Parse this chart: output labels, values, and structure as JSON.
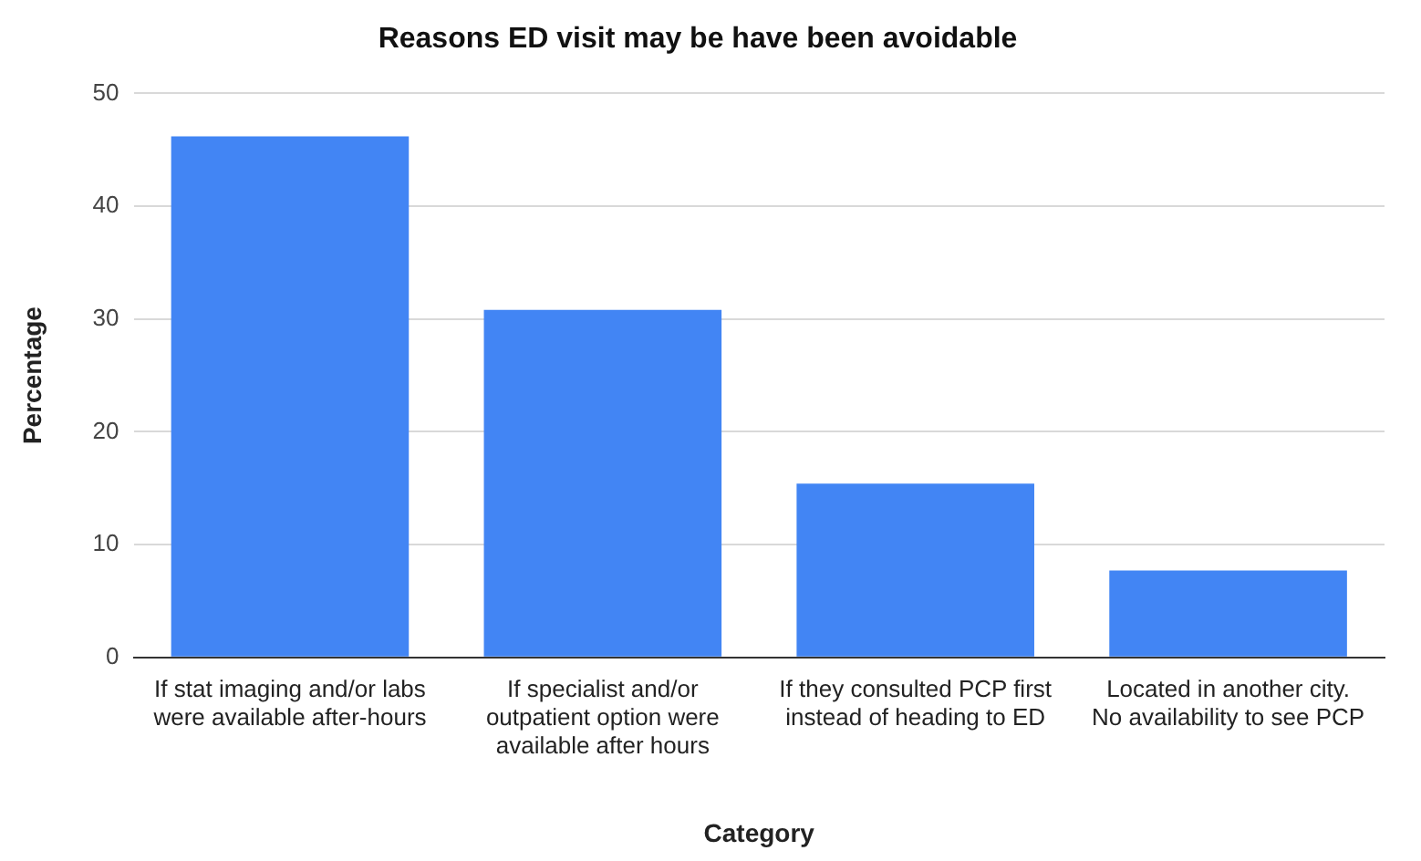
{
  "chart_data": {
    "type": "bar",
    "title": "Reasons ED visit may be have been avoidable",
    "xlabel": "Category",
    "ylabel": "Percentage",
    "categories": [
      "If stat imaging and/or labs were available after-hours",
      "If specialist and/or outpatient option were available after hours",
      "If they consulted PCP first instead of heading to ED",
      "Located in another city. No availability to see PCP"
    ],
    "values": [
      46.2,
      30.8,
      15.4,
      7.7
    ],
    "color": "#4285f4",
    "ylim": [
      0,
      50
    ],
    "yticks": [
      0,
      10,
      20,
      30,
      40,
      50
    ],
    "grid": "y"
  }
}
